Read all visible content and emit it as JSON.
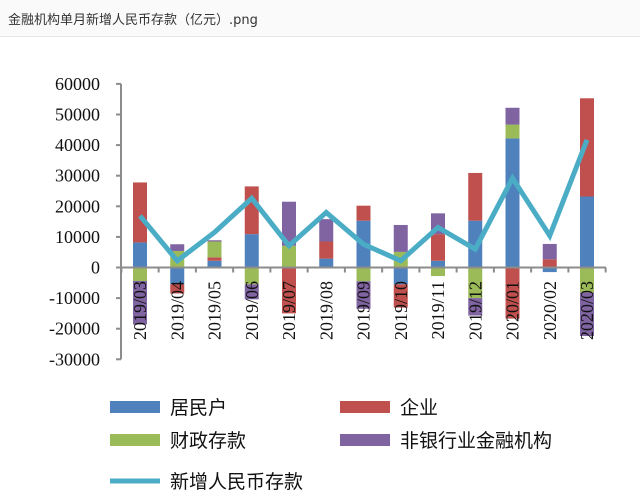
{
  "window": {
    "title": "金融机构单月新增人民币存款（亿元）.png"
  },
  "chart_data": {
    "type": "bar",
    "stacked": true,
    "title": "",
    "xlabel": "",
    "ylabel": "",
    "ylim": [
      -30000,
      60000
    ],
    "yticks": [
      60000,
      50000,
      40000,
      30000,
      20000,
      10000,
      0,
      -10000,
      -20000,
      -30000
    ],
    "grid": false,
    "legend_position": "bottom",
    "categories": [
      "2019/03",
      "2019/04",
      "2019/05",
      "2019/06",
      "2019/07",
      "2019/08",
      "2019/09",
      "2019/10",
      "2019/11",
      "2019/12",
      "2020/01",
      "2020/02",
      "2020/03"
    ],
    "series": [
      {
        "name": "居民户",
        "type": "bar",
        "color": "#4f81bd",
        "values": [
          8200,
          -5500,
          2200,
          10900,
          0,
          2900,
          15300,
          -5500,
          2200,
          15300,
          42200,
          -1500,
          23200
        ]
      },
      {
        "name": "企业",
        "type": "bar",
        "color": "#c0504d",
        "values": [
          19600,
          -3000,
          1100,
          15600,
          -15000,
          5600,
          4900,
          -7600,
          8700,
          15600,
          -16700,
          2700,
          32100
        ]
      },
      {
        "name": "财政存款",
        "type": "bar",
        "color": "#9bbb59",
        "values": [
          -4400,
          5400,
          5200,
          -5500,
          7100,
          0,
          -4500,
          5100,
          -2800,
          -10000,
          4500,
          0,
          -8200
        ]
      },
      {
        "name": "非银行业金融机构",
        "type": "bar",
        "color": "#8064a2",
        "values": [
          -14200,
          2200,
          400,
          -4900,
          14400,
          7300,
          -9000,
          8800,
          6800,
          -5700,
          5500,
          5000,
          -14200
        ]
      },
      {
        "name": "新增人民币存款",
        "type": "line",
        "color": "#4bacc6",
        "values": [
          16900,
          2200,
          11500,
          22600,
          7100,
          18000,
          7600,
          2200,
          13100,
          6000,
          29200,
          10400,
          41700
        ]
      }
    ]
  }
}
